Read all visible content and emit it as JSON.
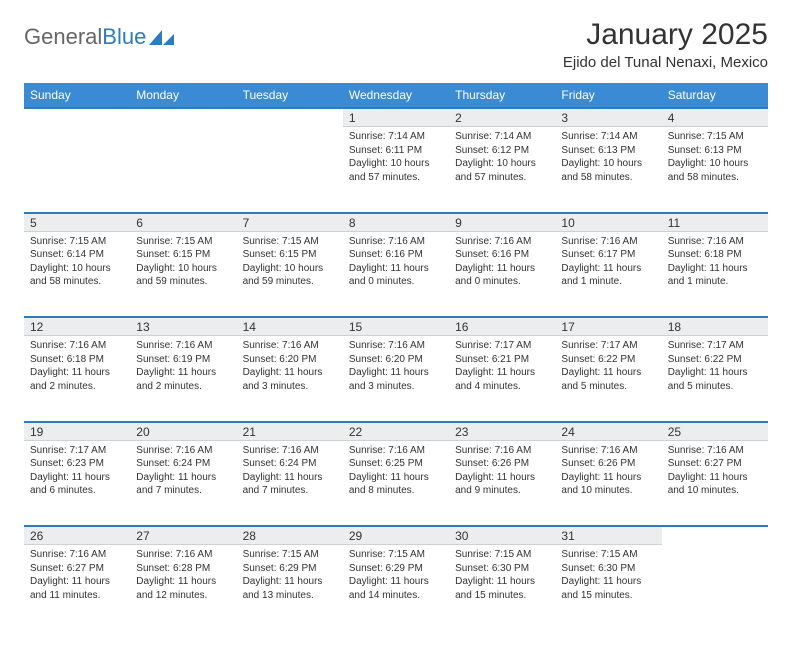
{
  "logo": {
    "text_general": "General",
    "text_blue": "Blue",
    "icon_color": "#2d7bc0"
  },
  "title": "January 2025",
  "location": "Ejido del Tunal Nenaxi, Mexico",
  "colors": {
    "header_bg": "#3b8bd4",
    "header_text": "#ffffff",
    "daynum_bg": "#ecedee",
    "border_accent": "#2d7bc0",
    "text": "#333333",
    "page_bg": "#ffffff"
  },
  "typography": {
    "title_fontsize": 30,
    "location_fontsize": 15,
    "weekday_fontsize": 12,
    "daynum_fontsize": 12,
    "body_fontsize": 10
  },
  "weekdays": [
    "Sunday",
    "Monday",
    "Tuesday",
    "Wednesday",
    "Thursday",
    "Friday",
    "Saturday"
  ],
  "weeks": [
    [
      null,
      null,
      null,
      {
        "n": "1",
        "sunrise": "Sunrise: 7:14 AM",
        "sunset": "Sunset: 6:11 PM",
        "day1": "Daylight: 10 hours",
        "day2": "and 57 minutes."
      },
      {
        "n": "2",
        "sunrise": "Sunrise: 7:14 AM",
        "sunset": "Sunset: 6:12 PM",
        "day1": "Daylight: 10 hours",
        "day2": "and 57 minutes."
      },
      {
        "n": "3",
        "sunrise": "Sunrise: 7:14 AM",
        "sunset": "Sunset: 6:13 PM",
        "day1": "Daylight: 10 hours",
        "day2": "and 58 minutes."
      },
      {
        "n": "4",
        "sunrise": "Sunrise: 7:15 AM",
        "sunset": "Sunset: 6:13 PM",
        "day1": "Daylight: 10 hours",
        "day2": "and 58 minutes."
      }
    ],
    [
      {
        "n": "5",
        "sunrise": "Sunrise: 7:15 AM",
        "sunset": "Sunset: 6:14 PM",
        "day1": "Daylight: 10 hours",
        "day2": "and 58 minutes."
      },
      {
        "n": "6",
        "sunrise": "Sunrise: 7:15 AM",
        "sunset": "Sunset: 6:15 PM",
        "day1": "Daylight: 10 hours",
        "day2": "and 59 minutes."
      },
      {
        "n": "7",
        "sunrise": "Sunrise: 7:15 AM",
        "sunset": "Sunset: 6:15 PM",
        "day1": "Daylight: 10 hours",
        "day2": "and 59 minutes."
      },
      {
        "n": "8",
        "sunrise": "Sunrise: 7:16 AM",
        "sunset": "Sunset: 6:16 PM",
        "day1": "Daylight: 11 hours",
        "day2": "and 0 minutes."
      },
      {
        "n": "9",
        "sunrise": "Sunrise: 7:16 AM",
        "sunset": "Sunset: 6:16 PM",
        "day1": "Daylight: 11 hours",
        "day2": "and 0 minutes."
      },
      {
        "n": "10",
        "sunrise": "Sunrise: 7:16 AM",
        "sunset": "Sunset: 6:17 PM",
        "day1": "Daylight: 11 hours",
        "day2": "and 1 minute."
      },
      {
        "n": "11",
        "sunrise": "Sunrise: 7:16 AM",
        "sunset": "Sunset: 6:18 PM",
        "day1": "Daylight: 11 hours",
        "day2": "and 1 minute."
      }
    ],
    [
      {
        "n": "12",
        "sunrise": "Sunrise: 7:16 AM",
        "sunset": "Sunset: 6:18 PM",
        "day1": "Daylight: 11 hours",
        "day2": "and 2 minutes."
      },
      {
        "n": "13",
        "sunrise": "Sunrise: 7:16 AM",
        "sunset": "Sunset: 6:19 PM",
        "day1": "Daylight: 11 hours",
        "day2": "and 2 minutes."
      },
      {
        "n": "14",
        "sunrise": "Sunrise: 7:16 AM",
        "sunset": "Sunset: 6:20 PM",
        "day1": "Daylight: 11 hours",
        "day2": "and 3 minutes."
      },
      {
        "n": "15",
        "sunrise": "Sunrise: 7:16 AM",
        "sunset": "Sunset: 6:20 PM",
        "day1": "Daylight: 11 hours",
        "day2": "and 3 minutes."
      },
      {
        "n": "16",
        "sunrise": "Sunrise: 7:17 AM",
        "sunset": "Sunset: 6:21 PM",
        "day1": "Daylight: 11 hours",
        "day2": "and 4 minutes."
      },
      {
        "n": "17",
        "sunrise": "Sunrise: 7:17 AM",
        "sunset": "Sunset: 6:22 PM",
        "day1": "Daylight: 11 hours",
        "day2": "and 5 minutes."
      },
      {
        "n": "18",
        "sunrise": "Sunrise: 7:17 AM",
        "sunset": "Sunset: 6:22 PM",
        "day1": "Daylight: 11 hours",
        "day2": "and 5 minutes."
      }
    ],
    [
      {
        "n": "19",
        "sunrise": "Sunrise: 7:17 AM",
        "sunset": "Sunset: 6:23 PM",
        "day1": "Daylight: 11 hours",
        "day2": "and 6 minutes."
      },
      {
        "n": "20",
        "sunrise": "Sunrise: 7:16 AM",
        "sunset": "Sunset: 6:24 PM",
        "day1": "Daylight: 11 hours",
        "day2": "and 7 minutes."
      },
      {
        "n": "21",
        "sunrise": "Sunrise: 7:16 AM",
        "sunset": "Sunset: 6:24 PM",
        "day1": "Daylight: 11 hours",
        "day2": "and 7 minutes."
      },
      {
        "n": "22",
        "sunrise": "Sunrise: 7:16 AM",
        "sunset": "Sunset: 6:25 PM",
        "day1": "Daylight: 11 hours",
        "day2": "and 8 minutes."
      },
      {
        "n": "23",
        "sunrise": "Sunrise: 7:16 AM",
        "sunset": "Sunset: 6:26 PM",
        "day1": "Daylight: 11 hours",
        "day2": "and 9 minutes."
      },
      {
        "n": "24",
        "sunrise": "Sunrise: 7:16 AM",
        "sunset": "Sunset: 6:26 PM",
        "day1": "Daylight: 11 hours",
        "day2": "and 10 minutes."
      },
      {
        "n": "25",
        "sunrise": "Sunrise: 7:16 AM",
        "sunset": "Sunset: 6:27 PM",
        "day1": "Daylight: 11 hours",
        "day2": "and 10 minutes."
      }
    ],
    [
      {
        "n": "26",
        "sunrise": "Sunrise: 7:16 AM",
        "sunset": "Sunset: 6:27 PM",
        "day1": "Daylight: 11 hours",
        "day2": "and 11 minutes."
      },
      {
        "n": "27",
        "sunrise": "Sunrise: 7:16 AM",
        "sunset": "Sunset: 6:28 PM",
        "day1": "Daylight: 11 hours",
        "day2": "and 12 minutes."
      },
      {
        "n": "28",
        "sunrise": "Sunrise: 7:15 AM",
        "sunset": "Sunset: 6:29 PM",
        "day1": "Daylight: 11 hours",
        "day2": "and 13 minutes."
      },
      {
        "n": "29",
        "sunrise": "Sunrise: 7:15 AM",
        "sunset": "Sunset: 6:29 PM",
        "day1": "Daylight: 11 hours",
        "day2": "and 14 minutes."
      },
      {
        "n": "30",
        "sunrise": "Sunrise: 7:15 AM",
        "sunset": "Sunset: 6:30 PM",
        "day1": "Daylight: 11 hours",
        "day2": "and 15 minutes."
      },
      {
        "n": "31",
        "sunrise": "Sunrise: 7:15 AM",
        "sunset": "Sunset: 6:30 PM",
        "day1": "Daylight: 11 hours",
        "day2": "and 15 minutes."
      },
      null
    ]
  ]
}
